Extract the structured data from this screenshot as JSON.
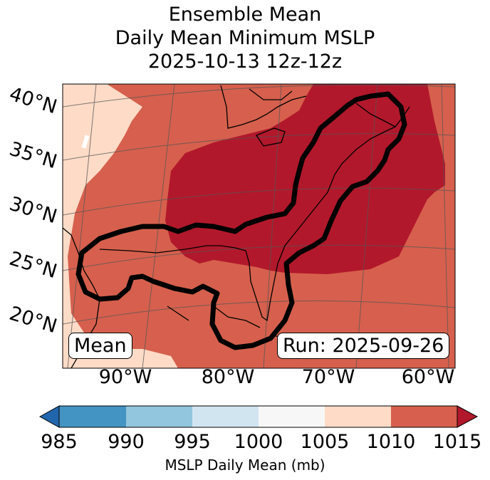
{
  "title": {
    "line1": "Ensemble Mean",
    "line2": "Daily Mean Minimum MSLP",
    "line3": "2025-10-13 12z-12z"
  },
  "map": {
    "lat_labels": [
      "40°N",
      "35°N",
      "30°N",
      "25°N",
      "20°N"
    ],
    "lon_labels": [
      "90°W",
      "80°W",
      "70°W",
      "60°W"
    ],
    "mean_label": "Mean",
    "run_label": "Run: 2025-09-26",
    "fill_colors": {
      "1005_1010": "#fddbc7",
      "1010_1015": "#d6604d",
      "over_1015": "#b2182b"
    }
  },
  "colorbar": {
    "ticks": [
      "985",
      "990",
      "995",
      "1000",
      "1005",
      "1010",
      "1015"
    ],
    "label": "MSLP Daily Mean (mb)",
    "colors": [
      "#2166ac",
      "#4393c3",
      "#92c5de",
      "#d1e5f0",
      "#f7f7f7",
      "#fddbc7",
      "#d6604d",
      "#b2182b"
    ]
  }
}
